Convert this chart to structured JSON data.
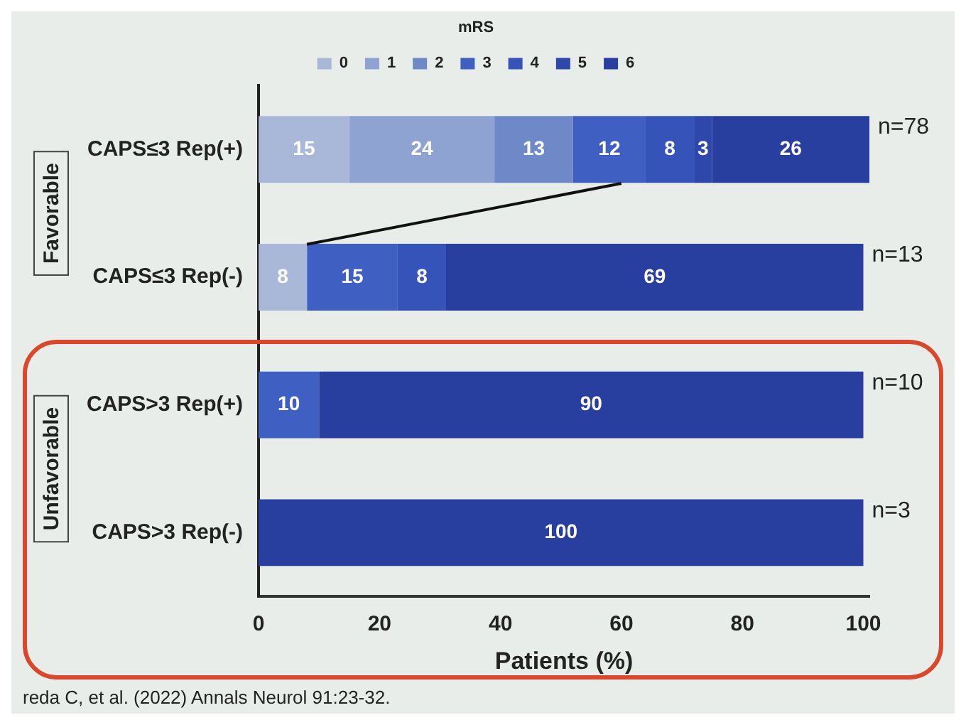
{
  "chart_data": {
    "type": "bar",
    "orientation": "horizontal",
    "stacked": true,
    "categories": [
      "CAPS≤3 Rep(+)",
      "CAPS≤3 Rep(-)",
      "CAPS>3 Rep(+)",
      "CAPS>3 Rep(-)"
    ],
    "series": [
      {
        "name": "0",
        "color": "#a9b8d8",
        "values": [
          15,
          8,
          null,
          null
        ]
      },
      {
        "name": "1",
        "color": "#8fa3d2",
        "values": [
          24,
          null,
          null,
          null
        ]
      },
      {
        "name": "2",
        "color": "#6f88c8",
        "values": [
          13,
          null,
          null,
          null
        ]
      },
      {
        "name": "3",
        "color": "#3f60c2",
        "values": [
          12,
          15,
          10,
          null
        ]
      },
      {
        "name": "4",
        "color": "#3553b8",
        "values": [
          8,
          8,
          null,
          null
        ]
      },
      {
        "name": "5",
        "color": "#2d47ab",
        "values": [
          3,
          null,
          null,
          null
        ]
      },
      {
        "name": "6",
        "color": "#283f9f",
        "values": [
          26,
          69,
          90,
          100
        ]
      }
    ],
    "xlim": [
      0,
      101
    ],
    "xticks": [
      0,
      20,
      40,
      60,
      80,
      100
    ],
    "xlabel": "Patients (%)",
    "legend": "top",
    "legend_title": "mRS",
    "grid": false,
    "data_labels": true,
    "annotations": [
      "n=78",
      "n=13",
      "n=10",
      "n=3",
      "Favorable",
      "Unfavorable",
      "reda C, et al. (2022) Annals Neurol 91:23-32."
    ]
  }
}
